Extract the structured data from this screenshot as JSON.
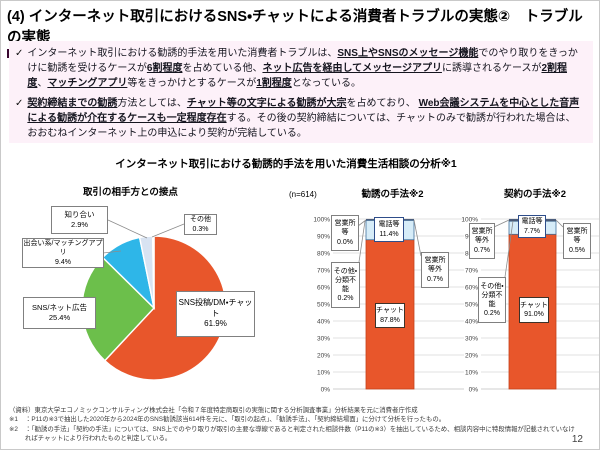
{
  "header": {
    "title": "(4) インターネット取引におけるSNS・チャットによる消費者トラブルの実態②　トラブルの実態"
  },
  "bullets": [
    {
      "check": "✓",
      "segments": [
        {
          "t": "インターネット取引における勧誘的手法を用いた消費者トラブルは、",
          "em": false
        },
        {
          "t": "SNS上やSNSのメッセージ機能",
          "em": true
        },
        {
          "t": "でのやり取りをきっかけに勧誘を受けるケースが",
          "em": false
        },
        {
          "t": "6割程度",
          "em": true
        },
        {
          "t": "を占めている他、",
          "em": false
        },
        {
          "t": "ネット広告を経由してメッセージアプリ",
          "em": true
        },
        {
          "t": "に誘導されるケースが",
          "em": false
        },
        {
          "t": "2割程度",
          "em": true
        },
        {
          "t": "、",
          "em": false
        },
        {
          "t": "マッチングアプリ",
          "em": true
        },
        {
          "t": "等をきっかけとするケースが",
          "em": false
        },
        {
          "t": "1割程度",
          "em": true
        },
        {
          "t": "となっている。",
          "em": false
        }
      ]
    },
    {
      "check": "✓",
      "segments": [
        {
          "t": "契約締結までの勧誘",
          "em": true
        },
        {
          "t": "方法としては、",
          "em": false
        },
        {
          "t": "チャット等の文字による勧誘が大宗",
          "em": true
        },
        {
          "t": "を占めており、 ",
          "em": false
        },
        {
          "t": "Web会議システムを中心とした音声による勧誘が介在するケースも一定程度存在",
          "em": true
        },
        {
          "t": "する。その後の契約締結については、チャットのみで勧誘が行われた場合は、おおむねインターネット上の申込により契約が完結している。",
          "em": false
        }
      ]
    }
  ],
  "analysis": {
    "title": "インターネット取引における勧誘的手法を用いた消費生活相談の分析※1",
    "sample_label": "(n=614)"
  },
  "chart_data": [
    {
      "type": "pie",
      "title": "取引の相手方との接点",
      "n_label": "(n=614)",
      "slices": [
        {
          "label": "SNS投稿/DM・チャット",
          "value": 61.9,
          "display": "61.9%",
          "color": "#e8562b"
        },
        {
          "label": "SNS/ネット広告",
          "value": 25.4,
          "display": "25.4%",
          "color": "#6cbf4b"
        },
        {
          "label": "出会い系/マッチングアプリ",
          "value": 9.4,
          "display": "9.4%",
          "color": "#2eb6e8"
        },
        {
          "label": "知り合い",
          "value": 2.9,
          "display": "2.9%",
          "color": "#d8e3f2"
        },
        {
          "label": "その他",
          "value": 0.3,
          "display": "0.3%",
          "color": "#f2f2f2"
        }
      ]
    },
    {
      "type": "bar",
      "title": "勧誘の手法※2",
      "stacked": true,
      "ylim": [
        0,
        100
      ],
      "ytick_step": 10,
      "ytick_format": "%",
      "grid": true,
      "segments_bottom_up": [
        {
          "label": "チャット",
          "value": 87.8,
          "display": "87.8%",
          "color": "#e8562b",
          "stroke": "#c4411c"
        },
        {
          "label": "電話等",
          "value": 11.4,
          "display": "11.4%",
          "color": "#d6ecf8",
          "stroke": "#41719c"
        },
        {
          "label": "営業所等",
          "value": 0.0,
          "display": "0.0%",
          "color": "#44546a",
          "stroke": "none"
        },
        {
          "label": "営業所等外",
          "value": 0.7,
          "display": "0.7%",
          "color": "#203864",
          "stroke": "none"
        },
        {
          "label": "その他・分類不能",
          "value": 0.2,
          "display": "0.2%",
          "color": "#a6a6a6",
          "stroke": "none"
        }
      ]
    },
    {
      "type": "bar",
      "title": "契約の手法※2",
      "stacked": true,
      "ylim": [
        0,
        100
      ],
      "ytick_step": 10,
      "ytick_format": "%",
      "grid": true,
      "segments_bottom_up": [
        {
          "label": "チャット",
          "value": 91.0,
          "display": "91.0%",
          "color": "#e8562b",
          "stroke": "#c4411c"
        },
        {
          "label": "電話等",
          "value": 7.7,
          "display": "7.7%",
          "color": "#d6ecf8",
          "stroke": "#41719c"
        },
        {
          "label": "営業所等",
          "value": 0.5,
          "display": "0.5%",
          "color": "#44546a",
          "stroke": "none"
        },
        {
          "label": "営業所等外",
          "value": 0.7,
          "display": "0.7%",
          "color": "#203864",
          "stroke": "none"
        },
        {
          "label": "その他・分類不能",
          "value": 0.2,
          "display": "0.2%",
          "color": "#a6a6a6",
          "stroke": "none"
        }
      ]
    }
  ],
  "footer": {
    "source": "（資料）東京大学エコノミックコンサルティング株式会社「令和７年度特定商取引の実態に関する分析調査事業」分析結果を元に消費者庁作成",
    "note1_label": "※1",
    "note1": "：P11の※3で抽出した2020年から2024年のSNS勧誘該当614件を元に、「取引の起点」、「勧誘手法」、「契約締結場面」に分けて分析を行ったもの。",
    "note2_label": "※2",
    "note2": "：「勧誘の手法」「契約の手法」については、SNS上でのやり取りが取引の主要な導線であると判定された相談件数（P11の※3）を抽出しているため、相談内容中に特段情報が記載されていなければチャットにより行われたものと判定している。",
    "page": "12"
  }
}
